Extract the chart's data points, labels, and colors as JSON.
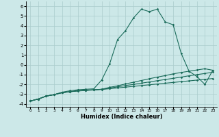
{
  "xlabel": "Humidex (Indice chaleur)",
  "xlim": [
    -0.5,
    23.5
  ],
  "ylim": [
    -4.3,
    6.5
  ],
  "yticks": [
    -4,
    -3,
    -2,
    -1,
    0,
    1,
    2,
    3,
    4,
    5,
    6
  ],
  "xticks": [
    0,
    1,
    2,
    3,
    4,
    5,
    6,
    7,
    8,
    9,
    10,
    11,
    12,
    13,
    14,
    15,
    16,
    17,
    18,
    19,
    20,
    21,
    22,
    23
  ],
  "background_color": "#cce8e8",
  "grid_color": "#aacccc",
  "line_color": "#1a6b5a",
  "line1_x": [
    0,
    1,
    2,
    3,
    4,
    5,
    6,
    7,
    8,
    9,
    10,
    11,
    12,
    13,
    14,
    15,
    16,
    17,
    18,
    19,
    20,
    21,
    22,
    23
  ],
  "line1_y": [
    -3.7,
    -3.5,
    -3.2,
    -3.05,
    -2.8,
    -2.65,
    -2.55,
    -2.5,
    -2.45,
    -1.55,
    0.1,
    2.6,
    3.5,
    4.8,
    5.7,
    5.45,
    5.7,
    4.4,
    4.1,
    1.2,
    -0.65,
    -1.2,
    -2.0,
    -0.55
  ],
  "line2_x": [
    0,
    1,
    2,
    3,
    4,
    5,
    6,
    7,
    8,
    9,
    10,
    11,
    12,
    13,
    14,
    15,
    16,
    17,
    18,
    19,
    20,
    21,
    22,
    23
  ],
  "line2_y": [
    -3.7,
    -3.5,
    -3.2,
    -3.05,
    -2.85,
    -2.75,
    -2.65,
    -2.6,
    -2.55,
    -2.5,
    -2.3,
    -2.15,
    -1.95,
    -1.78,
    -1.6,
    -1.42,
    -1.25,
    -1.1,
    -0.92,
    -0.78,
    -0.65,
    -0.52,
    -0.4,
    -0.55
  ],
  "line3_x": [
    0,
    1,
    2,
    3,
    4,
    5,
    6,
    7,
    8,
    9,
    10,
    11,
    12,
    13,
    14,
    15,
    16,
    17,
    18,
    19,
    20,
    21,
    22,
    23
  ],
  "line3_y": [
    -3.7,
    -3.5,
    -3.2,
    -3.05,
    -2.85,
    -2.75,
    -2.65,
    -2.6,
    -2.55,
    -2.5,
    -2.38,
    -2.25,
    -2.12,
    -2.0,
    -1.87,
    -1.75,
    -1.62,
    -1.5,
    -1.38,
    -1.25,
    -1.12,
    -1.0,
    -0.88,
    -0.75
  ],
  "line4_x": [
    0,
    1,
    2,
    3,
    4,
    5,
    6,
    7,
    8,
    9,
    10,
    11,
    12,
    13,
    14,
    15,
    16,
    17,
    18,
    19,
    20,
    21,
    22,
    23
  ],
  "line4_y": [
    -3.7,
    -3.5,
    -3.2,
    -3.05,
    -2.85,
    -2.75,
    -2.68,
    -2.62,
    -2.57,
    -2.52,
    -2.44,
    -2.36,
    -2.28,
    -2.2,
    -2.12,
    -2.04,
    -1.96,
    -1.88,
    -1.8,
    -1.72,
    -1.64,
    -1.56,
    -1.48,
    -1.4
  ]
}
